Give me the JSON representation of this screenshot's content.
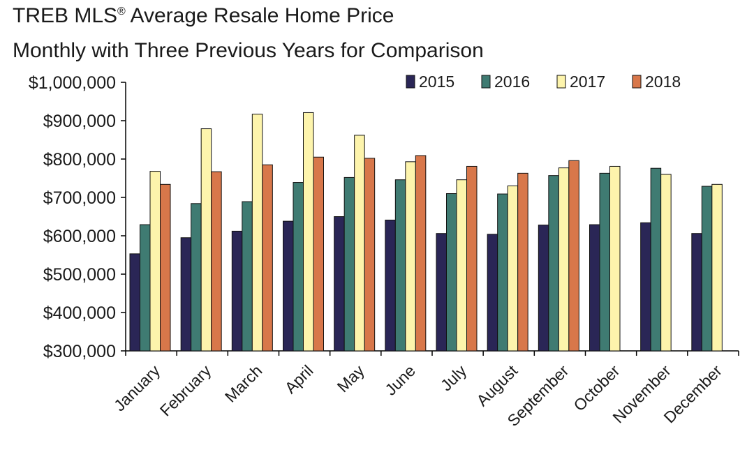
{
  "chart_data": {
    "type": "bar",
    "title": "TREB MLS® Average Resale Home Price",
    "subtitle": "Monthly with Three Previous Years for Comparison",
    "xlabel": "",
    "ylabel": "",
    "ylim": [
      300000,
      1000000
    ],
    "yticks": [
      300000,
      400000,
      500000,
      600000,
      700000,
      800000,
      900000,
      1000000
    ],
    "ytick_labels": [
      "$300,000",
      "$400,000",
      "$500,000",
      "$600,000",
      "$700,000",
      "$800,000",
      "$900,000",
      "$1,000,000"
    ],
    "categories": [
      "January",
      "February",
      "March",
      "April",
      "May",
      "June",
      "July",
      "August",
      "September",
      "October",
      "November",
      "December"
    ],
    "legend_position": "top-right",
    "grid": false,
    "series": [
      {
        "name": "2015",
        "color": "#2a2656",
        "values": [
          553000,
          595000,
          612000,
          638000,
          650000,
          641000,
          606000,
          604000,
          628000,
          629000,
          634000,
          606000
        ]
      },
      {
        "name": "2016",
        "color": "#3f7b72",
        "values": [
          629000,
          684000,
          689000,
          739000,
          752000,
          746000,
          710000,
          709000,
          757000,
          763000,
          776000,
          729000
        ]
      },
      {
        "name": "2017",
        "color": "#fdf4ac",
        "values": [
          768000,
          879000,
          917000,
          921000,
          862000,
          793000,
          746000,
          730000,
          777000,
          781000,
          760000,
          734000
        ]
      },
      {
        "name": "2018",
        "color": "#d8774a",
        "values": [
          734000,
          767000,
          785000,
          805000,
          802000,
          809000,
          781000,
          763000,
          796000,
          null,
          null,
          null
        ]
      }
    ]
  }
}
